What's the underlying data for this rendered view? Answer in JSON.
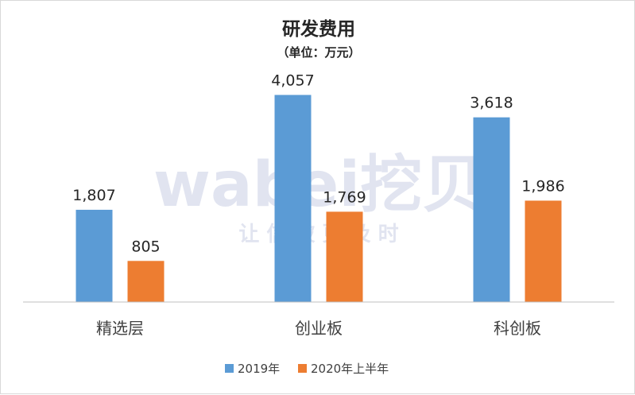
{
  "chart_data": {
    "type": "bar",
    "title": "研发费用",
    "subtitle": "（单位：万元）",
    "categories": [
      "精选层",
      "创业板",
      "科创板"
    ],
    "series": [
      {
        "name": "2019年",
        "color": "#5b9bd5",
        "values": [
          1807,
          4057,
          3618
        ],
        "labels": [
          "1,807",
          "4,057",
          "3,618"
        ]
      },
      {
        "name": "2020年上半年",
        "color": "#ed7d31",
        "values": [
          805,
          1769,
          1986
        ],
        "labels": [
          "805",
          "1,769",
          "1,986"
        ]
      }
    ],
    "ylim": [
      0,
      4500
    ],
    "grid": false,
    "legend_position": "bottom"
  },
  "watermark": {
    "brand": "wabei挖贝",
    "tagline": "让 信 披 更 及 时"
  }
}
